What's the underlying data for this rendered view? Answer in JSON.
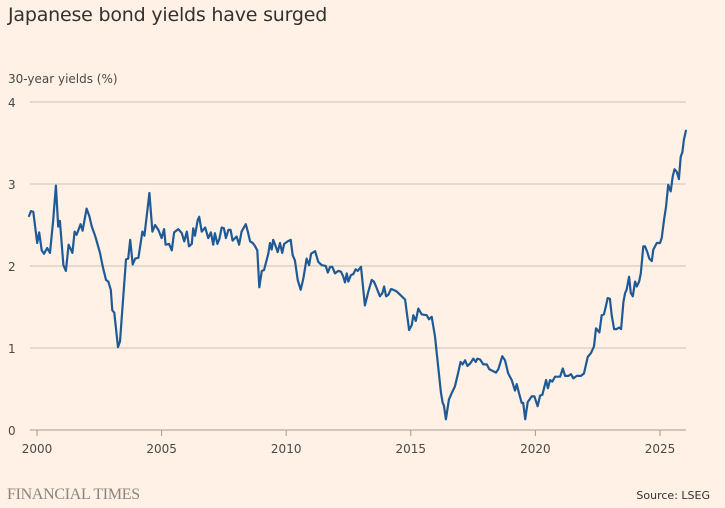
{
  "colors": {
    "background": "#FFF1E5",
    "line": "#1F5A96",
    "grid": "#CEC2B8",
    "axis": "#A59C94"
  },
  "branding": {
    "logo": "FINANCIAL TIMES"
  },
  "source": "Source: LSEG",
  "chart_data": {
    "type": "line",
    "title": "Japanese bond yields have surged",
    "ylabel": "30-year yields (%)",
    "xlabel": "",
    "ylim": [
      0,
      4
    ],
    "xlim": [
      1999.6,
      2026.1
    ],
    "yticks": [
      0,
      1,
      2,
      3,
      4
    ],
    "xticks": [
      2000,
      2005,
      2010,
      2015,
      2020,
      2025
    ],
    "grid": true,
    "series": [
      {
        "values": [
          [
            1999.68,
            2.61
          ],
          [
            1999.76,
            2.67
          ],
          [
            1999.85,
            2.66
          ],
          [
            2000.01,
            2.28
          ],
          [
            2000.09,
            2.41
          ],
          [
            2000.19,
            2.19
          ],
          [
            2000.28,
            2.15
          ],
          [
            2000.41,
            2.22
          ],
          [
            2000.52,
            2.16
          ],
          [
            2000.65,
            2.56
          ],
          [
            2000.76,
            2.98
          ],
          [
            2000.85,
            2.48
          ],
          [
            2000.92,
            2.55
          ],
          [
            2001.06,
            2.01
          ],
          [
            2001.16,
            1.94
          ],
          [
            2001.27,
            2.26
          ],
          [
            2001.42,
            2.16
          ],
          [
            2001.51,
            2.42
          ],
          [
            2001.59,
            2.38
          ],
          [
            2001.75,
            2.51
          ],
          [
            2001.83,
            2.43
          ],
          [
            2001.99,
            2.7
          ],
          [
            2002.1,
            2.61
          ],
          [
            2002.2,
            2.48
          ],
          [
            2002.33,
            2.37
          ],
          [
            2002.53,
            2.16
          ],
          [
            2002.64,
            1.99
          ],
          [
            2002.77,
            1.83
          ],
          [
            2002.86,
            1.81
          ],
          [
            2002.96,
            1.71
          ],
          [
            2003.02,
            1.46
          ],
          [
            2003.1,
            1.43
          ],
          [
            2003.25,
            1.01
          ],
          [
            2003.33,
            1.08
          ],
          [
            2003.57,
            2.08
          ],
          [
            2003.66,
            2.09
          ],
          [
            2003.74,
            2.32
          ],
          [
            2003.84,
            2.02
          ],
          [
            2003.94,
            2.09
          ],
          [
            2004.07,
            2.1
          ],
          [
            2004.23,
            2.42
          ],
          [
            2004.31,
            2.37
          ],
          [
            2004.51,
            2.89
          ],
          [
            2004.63,
            2.42
          ],
          [
            2004.74,
            2.5
          ],
          [
            2004.87,
            2.44
          ],
          [
            2005.0,
            2.34
          ],
          [
            2005.1,
            2.45
          ],
          [
            2005.16,
            2.26
          ],
          [
            2005.3,
            2.27
          ],
          [
            2005.41,
            2.19
          ],
          [
            2005.5,
            2.41
          ],
          [
            2005.67,
            2.45
          ],
          [
            2005.81,
            2.4
          ],
          [
            2005.91,
            2.3
          ],
          [
            2006.01,
            2.42
          ],
          [
            2006.1,
            2.24
          ],
          [
            2006.21,
            2.27
          ],
          [
            2006.27,
            2.46
          ],
          [
            2006.34,
            2.37
          ],
          [
            2006.45,
            2.56
          ],
          [
            2006.51,
            2.6
          ],
          [
            2006.61,
            2.42
          ],
          [
            2006.75,
            2.47
          ],
          [
            2006.87,
            2.34
          ],
          [
            2006.98,
            2.41
          ],
          [
            2007.07,
            2.26
          ],
          [
            2007.14,
            2.4
          ],
          [
            2007.24,
            2.27
          ],
          [
            2007.32,
            2.33
          ],
          [
            2007.41,
            2.47
          ],
          [
            2007.5,
            2.46
          ],
          [
            2007.58,
            2.34
          ],
          [
            2007.68,
            2.44
          ],
          [
            2007.77,
            2.44
          ],
          [
            2007.85,
            2.31
          ],
          [
            2008.01,
            2.36
          ],
          [
            2008.11,
            2.26
          ],
          [
            2008.21,
            2.42
          ],
          [
            2008.38,
            2.51
          ],
          [
            2008.46,
            2.42
          ],
          [
            2008.55,
            2.3
          ],
          [
            2008.66,
            2.28
          ],
          [
            2008.75,
            2.24
          ],
          [
            2008.84,
            2.19
          ],
          [
            2008.92,
            1.74
          ],
          [
            2009.02,
            1.94
          ],
          [
            2009.11,
            1.95
          ],
          [
            2009.28,
            2.15
          ],
          [
            2009.35,
            2.28
          ],
          [
            2009.42,
            2.2
          ],
          [
            2009.48,
            2.32
          ],
          [
            2009.58,
            2.24
          ],
          [
            2009.66,
            2.17
          ],
          [
            2009.75,
            2.28
          ],
          [
            2009.84,
            2.16
          ],
          [
            2009.92,
            2.27
          ],
          [
            2010.06,
            2.3
          ],
          [
            2010.18,
            2.32
          ],
          [
            2010.26,
            2.13
          ],
          [
            2010.35,
            2.07
          ],
          [
            2010.46,
            1.83
          ],
          [
            2010.58,
            1.71
          ],
          [
            2010.69,
            1.85
          ],
          [
            2010.82,
            2.09
          ],
          [
            2010.92,
            2.01
          ],
          [
            2011.0,
            2.15
          ],
          [
            2011.16,
            2.18
          ],
          [
            2011.29,
            2.05
          ],
          [
            2011.43,
            2.01
          ],
          [
            2011.59,
            2.0
          ],
          [
            2011.67,
            1.92
          ],
          [
            2011.76,
            1.99
          ],
          [
            2011.85,
            1.99
          ],
          [
            2011.96,
            1.91
          ],
          [
            2012.09,
            1.94
          ],
          [
            2012.2,
            1.93
          ],
          [
            2012.29,
            1.87
          ],
          [
            2012.36,
            1.8
          ],
          [
            2012.43,
            1.91
          ],
          [
            2012.49,
            1.81
          ],
          [
            2012.6,
            1.89
          ],
          [
            2012.69,
            1.9
          ],
          [
            2012.79,
            1.96
          ],
          [
            2012.87,
            1.94
          ],
          [
            2013.0,
            1.99
          ],
          [
            2013.16,
            1.52
          ],
          [
            2013.3,
            1.69
          ],
          [
            2013.43,
            1.83
          ],
          [
            2013.52,
            1.81
          ],
          [
            2013.63,
            1.73
          ],
          [
            2013.76,
            1.63
          ],
          [
            2013.86,
            1.67
          ],
          [
            2013.93,
            1.75
          ],
          [
            2014.01,
            1.63
          ],
          [
            2014.1,
            1.65
          ],
          [
            2014.21,
            1.72
          ],
          [
            2014.3,
            1.71
          ],
          [
            2014.43,
            1.69
          ],
          [
            2014.57,
            1.65
          ],
          [
            2014.77,
            1.59
          ],
          [
            2014.93,
            1.22
          ],
          [
            2015.04,
            1.28
          ],
          [
            2015.1,
            1.4
          ],
          [
            2015.2,
            1.33
          ],
          [
            2015.3,
            1.48
          ],
          [
            2015.44,
            1.41
          ],
          [
            2015.64,
            1.4
          ],
          [
            2015.73,
            1.35
          ],
          [
            2015.84,
            1.38
          ],
          [
            2015.97,
            1.14
          ],
          [
            2016.1,
            0.77
          ],
          [
            2016.21,
            0.45
          ],
          [
            2016.28,
            0.33
          ],
          [
            2016.33,
            0.3
          ],
          [
            2016.41,
            0.13
          ],
          [
            2016.53,
            0.37
          ],
          [
            2016.64,
            0.45
          ],
          [
            2016.77,
            0.53
          ],
          [
            2016.91,
            0.71
          ],
          [
            2017.0,
            0.83
          ],
          [
            2017.08,
            0.8
          ],
          [
            2017.18,
            0.85
          ],
          [
            2017.27,
            0.78
          ],
          [
            2017.38,
            0.81
          ],
          [
            2017.51,
            0.87
          ],
          [
            2017.61,
            0.83
          ],
          [
            2017.67,
            0.87
          ],
          [
            2017.78,
            0.86
          ],
          [
            2017.91,
            0.8
          ],
          [
            2018.05,
            0.8
          ],
          [
            2018.15,
            0.74
          ],
          [
            2018.29,
            0.72
          ],
          [
            2018.42,
            0.7
          ],
          [
            2018.51,
            0.74
          ],
          [
            2018.67,
            0.9
          ],
          [
            2018.78,
            0.85
          ],
          [
            2018.91,
            0.69
          ],
          [
            2019.05,
            0.61
          ],
          [
            2019.18,
            0.48
          ],
          [
            2019.25,
            0.56
          ],
          [
            2019.34,
            0.45
          ],
          [
            2019.45,
            0.33
          ],
          [
            2019.51,
            0.33
          ],
          [
            2019.59,
            0.13
          ],
          [
            2019.69,
            0.34
          ],
          [
            2019.85,
            0.41
          ],
          [
            2019.96,
            0.41
          ],
          [
            2020.09,
            0.29
          ],
          [
            2020.19,
            0.42
          ],
          [
            2020.28,
            0.43
          ],
          [
            2020.43,
            0.61
          ],
          [
            2020.5,
            0.51
          ],
          [
            2020.59,
            0.61
          ],
          [
            2020.68,
            0.59
          ],
          [
            2020.79,
            0.65
          ],
          [
            2020.99,
            0.65
          ],
          [
            2021.1,
            0.75
          ],
          [
            2021.19,
            0.66
          ],
          [
            2021.32,
            0.66
          ],
          [
            2021.43,
            0.68
          ],
          [
            2021.52,
            0.63
          ],
          [
            2021.66,
            0.66
          ],
          [
            2021.83,
            0.66
          ],
          [
            2021.95,
            0.69
          ],
          [
            2022.1,
            0.89
          ],
          [
            2022.23,
            0.94
          ],
          [
            2022.35,
            1.02
          ],
          [
            2022.43,
            1.24
          ],
          [
            2022.57,
            1.19
          ],
          [
            2022.66,
            1.4
          ],
          [
            2022.75,
            1.41
          ],
          [
            2022.82,
            1.5
          ],
          [
            2022.9,
            1.61
          ],
          [
            2022.99,
            1.6
          ],
          [
            2023.06,
            1.4
          ],
          [
            2023.16,
            1.23
          ],
          [
            2023.26,
            1.23
          ],
          [
            2023.36,
            1.25
          ],
          [
            2023.44,
            1.23
          ],
          [
            2023.53,
            1.56
          ],
          [
            2023.6,
            1.67
          ],
          [
            2023.66,
            1.71
          ],
          [
            2023.76,
            1.87
          ],
          [
            2023.83,
            1.67
          ],
          [
            2023.91,
            1.63
          ],
          [
            2024.0,
            1.81
          ],
          [
            2024.07,
            1.75
          ],
          [
            2024.16,
            1.81
          ],
          [
            2024.23,
            1.91
          ],
          [
            2024.33,
            2.24
          ],
          [
            2024.4,
            2.24
          ],
          [
            2024.49,
            2.17
          ],
          [
            2024.57,
            2.09
          ],
          [
            2024.67,
            2.06
          ],
          [
            2024.73,
            2.2
          ],
          [
            2024.87,
            2.28
          ],
          [
            2025.0,
            2.28
          ],
          [
            2025.07,
            2.34
          ],
          [
            2025.16,
            2.56
          ],
          [
            2025.24,
            2.72
          ],
          [
            2025.33,
            2.99
          ],
          [
            2025.43,
            2.91
          ],
          [
            2025.51,
            3.09
          ],
          [
            2025.58,
            3.18
          ],
          [
            2025.67,
            3.15
          ],
          [
            2025.76,
            3.06
          ],
          [
            2025.83,
            3.33
          ],
          [
            2025.9,
            3.39
          ],
          [
            2025.96,
            3.54
          ],
          [
            2026.04,
            3.65
          ]
        ]
      }
    ]
  }
}
